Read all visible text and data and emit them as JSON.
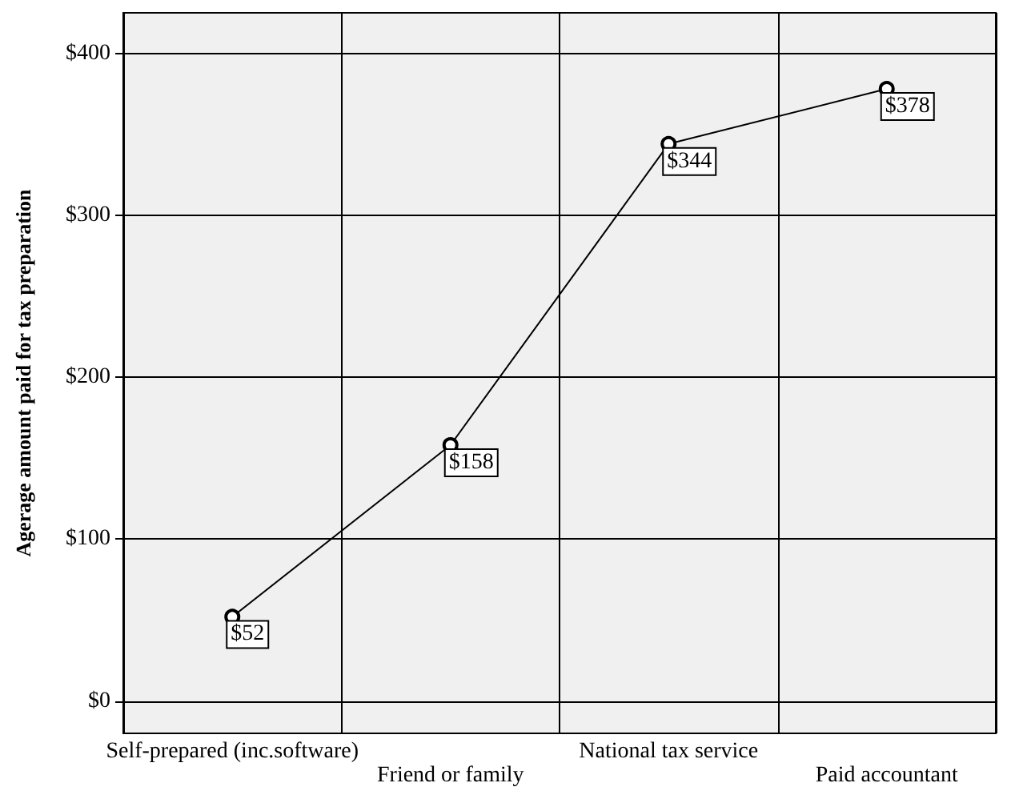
{
  "chart_data": {
    "type": "line",
    "ylabel": "Agerage amount paid for tax preparation",
    "categories": [
      "Self-prepared (inc.software)",
      "Friend or family",
      "National tax service",
      "Paid accountant"
    ],
    "series": [
      {
        "color": "#000000",
        "values": [
          52,
          158,
          344,
          378
        ],
        "value_labels": [
          "$52",
          "$158",
          "$344",
          "$378"
        ]
      }
    ],
    "ylim": [
      -20,
      425
    ],
    "yticks": [
      {
        "value": 0,
        "label": "$0"
      },
      {
        "value": 100,
        "label": "$100"
      },
      {
        "value": 200,
        "label": "$200"
      },
      {
        "value": 300,
        "label": "$300"
      },
      {
        "value": 400,
        "label": "$400"
      }
    ],
    "grid": true,
    "marker": "circle",
    "line_style": "solid"
  }
}
